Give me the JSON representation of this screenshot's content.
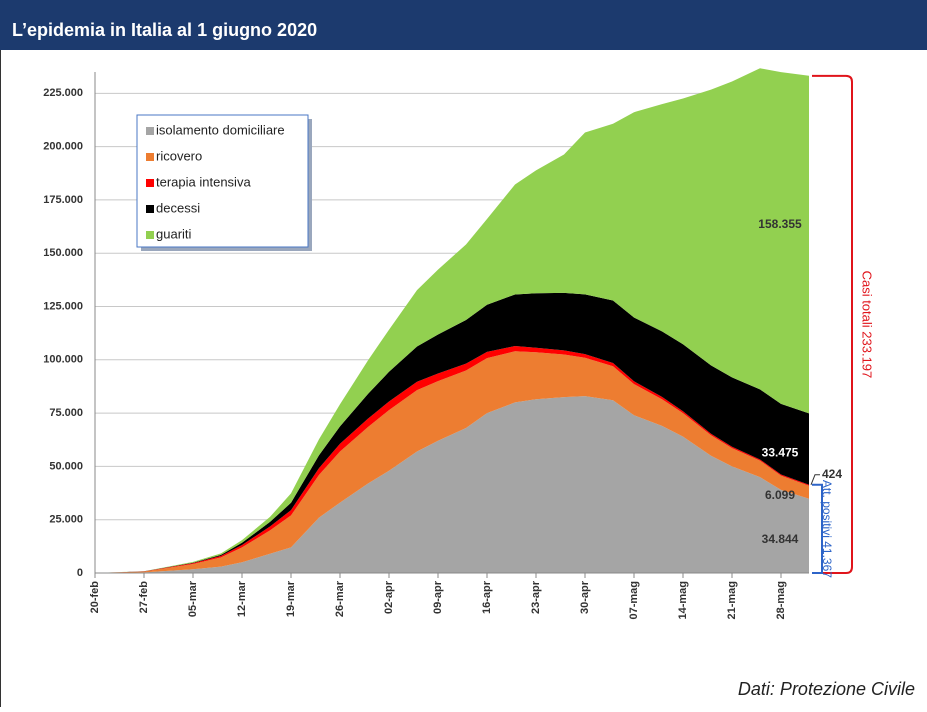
{
  "chart_data": {
    "type": "stacked_area",
    "title": "L’epidemia in Italia al 1 giugno 2020",
    "source": "Dati: Protezione Civile",
    "x": [
      0,
      7,
      14,
      18,
      21,
      25,
      28,
      32,
      35,
      39,
      42,
      46,
      49,
      53,
      56,
      60,
      63,
      67,
      70,
      74,
      77,
      81,
      84,
      88,
      91,
      95,
      98,
      102
    ],
    "xlim": [
      0,
      102
    ],
    "xticks": [
      {
        "value": 0,
        "label": "20-feb"
      },
      {
        "value": 7,
        "label": "27-feb"
      },
      {
        "value": 14,
        "label": "05-mar"
      },
      {
        "value": 21,
        "label": "12-mar"
      },
      {
        "value": 28,
        "label": "19-mar"
      },
      {
        "value": 35,
        "label": "26-mar"
      },
      {
        "value": 42,
        "label": "02-apr"
      },
      {
        "value": 49,
        "label": "09-apr"
      },
      {
        "value": 56,
        "label": "16-apr"
      },
      {
        "value": 63,
        "label": "23-apr"
      },
      {
        "value": 70,
        "label": "30-apr"
      },
      {
        "value": 77,
        "label": "07-mag"
      },
      {
        "value": 84,
        "label": "14-mag"
      },
      {
        "value": 91,
        "label": "21-mag"
      },
      {
        "value": 98,
        "label": "28-mag"
      }
    ],
    "ylim": [
      0,
      235000
    ],
    "yticks": [
      0,
      {
        "value": 25000,
        "label": "25.000"
      },
      {
        "value": 50000,
        "label": "50.000"
      },
      {
        "value": 75000,
        "label": "75.000"
      },
      {
        "value": 100000,
        "label": "100.000"
      },
      {
        "value": 125000,
        "label": "125.000"
      },
      {
        "value": 150000,
        "label": "150.000"
      },
      {
        "value": 175000,
        "label": "175.000"
      },
      {
        "value": 200000,
        "label": "200.000"
      },
      {
        "value": 225000,
        "label": "225.000"
      }
    ],
    "grid": true,
    "legend": "upper left",
    "series": [
      {
        "name": "isolamento domiciliare",
        "color": "#a5a5a5",
        "last_label": "34.844",
        "values": [
          0,
          300,
          1800,
          3000,
          5000,
          9000,
          12000,
          26000,
          33000,
          42000,
          48000,
          57000,
          62000,
          68000,
          75000,
          80000,
          81500,
          82500,
          83000,
          81000,
          74000,
          69000,
          64000,
          55000,
          50000,
          45000,
          39000,
          34844
        ]
      },
      {
        "name": "ricovero",
        "color": "#ed7d31",
        "last_label": "6.099",
        "values": [
          0,
          400,
          2400,
          4300,
          7000,
          11000,
          15000,
          20000,
          24000,
          26500,
          28400,
          28800,
          28000,
          27000,
          25800,
          24000,
          22000,
          20000,
          18000,
          16000,
          14600,
          12500,
          11000,
          9600,
          8600,
          7700,
          6700,
          6099
        ]
      },
      {
        "name": "terapia intensiva",
        "color": "#ff0000",
        "last_label": "424",
        "values": [
          0,
          60,
          460,
          730,
          1150,
          1800,
          2500,
          3200,
          3600,
          3900,
          4050,
          3900,
          3600,
          3200,
          2900,
          2500,
          2200,
          1900,
          1700,
          1500,
          1300,
          1100,
          900,
          750,
          640,
          540,
          490,
          424
        ]
      },
      {
        "name": "decessi",
        "color": "#000000",
        "last_label": "33.475",
        "values": [
          0,
          17,
          148,
          463,
          1016,
          2158,
          3405,
          6077,
          8165,
          11591,
          13915,
          16523,
          18279,
          20465,
          22170,
          24114,
          25549,
          26977,
          27967,
          29315,
          29958,
          30739,
          31368,
          32007,
          32486,
          32877,
          33142,
          33475
        ]
      },
      {
        "name": "guariti",
        "color": "#92d050",
        "last_label": "158.355",
        "values": [
          0,
          46,
          414,
          724,
          1258,
          2335,
          4440,
          7432,
          10361,
          15729,
          19758,
          26491,
          30455,
          35435,
          40164,
          51600,
          57576,
          64928,
          75945,
          82879,
          96276,
          106587,
          115288,
          129401,
          138840,
          150604,
          155633,
          158355
        ]
      }
    ],
    "total_annotation": {
      "label": "Casi totali 233.197",
      "value": 233197
    },
    "positive_annotation": {
      "label": "Att. positivi 41.367",
      "value": 41367
    }
  }
}
